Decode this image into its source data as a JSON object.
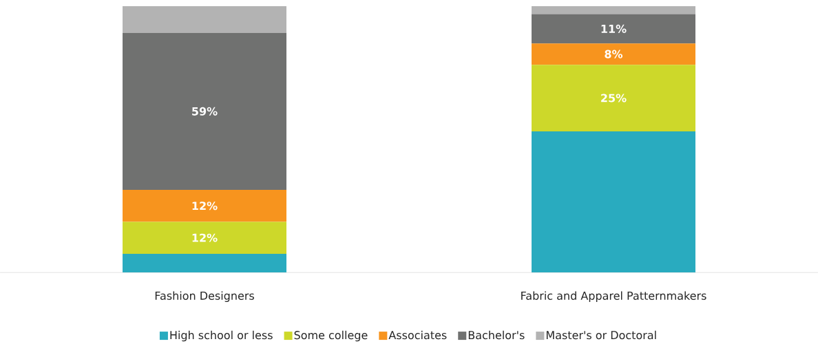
{
  "chart_data": {
    "type": "bar",
    "stacked": true,
    "legend": "bottom",
    "categories": [
      "Fashion Designers",
      "Fabric and Apparel Patternmakers"
    ],
    "series": [
      {
        "name": "High school or less",
        "color": "#29abbf",
        "values": [
          7,
          53
        ],
        "value_labels": [
          null,
          null
        ]
      },
      {
        "name": "Some college",
        "color": "#cdd82a",
        "values": [
          12,
          25
        ],
        "value_labels": [
          "12%",
          "25%"
        ]
      },
      {
        "name": "Associates",
        "color": "#f7941e",
        "values": [
          12,
          8
        ],
        "value_labels": [
          "12%",
          "8%"
        ]
      },
      {
        "name": "Bachelor's",
        "color": "#707170",
        "values": [
          59,
          11
        ],
        "value_labels": [
          "59%",
          "11%"
        ]
      },
      {
        "name": "Master's or Doctoral",
        "color": "#b3b3b3",
        "values": [
          10,
          3
        ],
        "value_labels": [
          null,
          null
        ]
      }
    ]
  }
}
